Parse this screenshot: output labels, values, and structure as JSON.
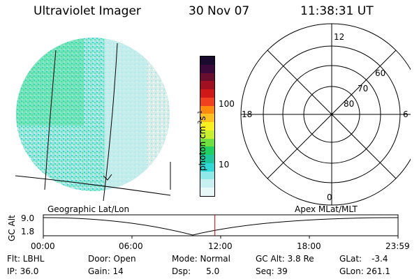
{
  "header": {
    "instrument": "Ultraviolet Imager",
    "date": "30 Nov 07",
    "time": "11:38:31 UT"
  },
  "colorbar": {
    "unit": "photon cm",
    "sup1": "-2",
    "mid": "s",
    "sup2": "-1",
    "ticks": [
      "100",
      "10"
    ],
    "colors": [
      "#1a0a2e",
      "#3b0a3a",
      "#6a0e2f",
      "#a01020",
      "#d01818",
      "#f04020",
      "#ff8a10",
      "#ffc020",
      "#f8f020",
      "#c8f030",
      "#70e040",
      "#20d060",
      "#20c8a0",
      "#30d8d8",
      "#90e8e8",
      "#c8f0f0",
      "#e8f8f8"
    ]
  },
  "polar": {
    "ring_labels": [
      "60",
      "70",
      "80"
    ],
    "mlt_labels": {
      "top": "12",
      "left": "18",
      "right": "6",
      "bottom": "0"
    }
  },
  "timeline": {
    "ylabel": "GC Alt",
    "y_ticks": [
      "9.0",
      "1.8"
    ],
    "left_label": "Geographic Lat/Lon",
    "right_label": "Apex MLat/MLT",
    "x_ticks": [
      "00:00",
      "06:00",
      "12:00",
      "18:00",
      "23:59"
    ],
    "current_time_fraction": 0.4837,
    "marker_color": "#c00000"
  },
  "status": {
    "flt": "Flt: LBHL",
    "ip": "IP: 36.0",
    "door": "Door: Open",
    "gain": "Gain: 14",
    "mode": "Mode: Normal",
    "dsp_label": "Dsp:",
    "dsp_value": "5.0",
    "gc_alt": "GC Alt: 3.8 Re",
    "seq": "Seq: 39",
    "glat_label": "GLat:",
    "glat_value": "-3.4",
    "glon": "GLon: 261.1"
  }
}
